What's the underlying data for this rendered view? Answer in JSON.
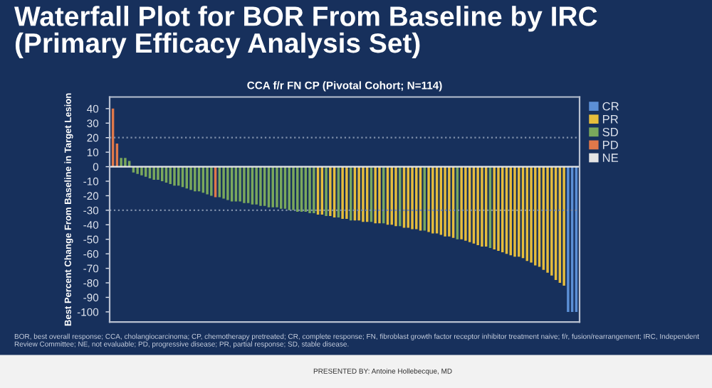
{
  "chart_data": {
    "type": "bar",
    "title": "Waterfall Plot for BOR From Baseline by IRC\n(Primary Efficacy Analysis Set)",
    "subtitle": "CCA f/r FN CP (Pivotal Cohort; N=114)",
    "ylabel": "Best Percent Change From Baseline in Target Lesion",
    "categories": [
      null,
      null,
      null,
      null,
      null,
      null,
      null,
      null,
      null,
      null,
      null,
      null,
      null,
      null,
      null,
      null,
      null,
      null,
      null,
      null,
      null,
      null,
      null,
      null,
      null,
      null,
      null,
      null,
      null,
      null,
      null,
      null,
      null,
      null,
      null,
      null,
      null,
      null,
      null,
      null,
      null,
      null,
      null,
      null,
      null,
      null,
      null,
      null,
      null,
      null,
      null,
      null,
      null,
      null,
      null,
      null,
      null,
      null,
      null,
      null,
      null,
      null,
      null,
      null,
      null,
      null,
      null,
      null,
      null,
      null,
      null,
      null,
      null,
      null,
      null,
      null,
      null,
      null,
      null,
      null,
      null,
      null,
      null,
      null,
      null,
      null,
      null,
      null,
      null,
      null,
      null,
      null,
      null,
      null,
      null,
      null,
      null,
      null,
      null,
      null,
      null,
      null,
      null,
      null,
      null,
      null,
      null,
      null,
      null,
      null,
      null,
      null,
      null,
      null
    ],
    "series": [
      {
        "name": "CR",
        "color": "#5b8fd6",
        "values": [
          null,
          null,
          null,
          null,
          null,
          null,
          null,
          null,
          null,
          null,
          null,
          null,
          null,
          null,
          null,
          null,
          null,
          null,
          null,
          null,
          null,
          null,
          null,
          null,
          null,
          null,
          null,
          null,
          null,
          null,
          null,
          null,
          null,
          null,
          null,
          null,
          null,
          null,
          null,
          null,
          null,
          null,
          null,
          null,
          null,
          null,
          null,
          null,
          null,
          null,
          null,
          null,
          null,
          null,
          null,
          null,
          null,
          null,
          null,
          null,
          null,
          null,
          null,
          null,
          null,
          null,
          null,
          null,
          null,
          null,
          null,
          null,
          null,
          null,
          null,
          null,
          null,
          null,
          null,
          null,
          null,
          null,
          null,
          null,
          null,
          null,
          null,
          null,
          null,
          null,
          null,
          null,
          null,
          null,
          null,
          null,
          null,
          null,
          null,
          null,
          null,
          null,
          null,
          null,
          null,
          null,
          null,
          null,
          null,
          null,
          null,
          -100,
          -100,
          -100
        ]
      },
      {
        "name": "PR",
        "color": "#e6bd3c",
        "values": [
          null,
          null,
          null,
          null,
          null,
          null,
          null,
          null,
          null,
          null,
          null,
          null,
          null,
          null,
          null,
          null,
          null,
          null,
          null,
          null,
          null,
          null,
          null,
          null,
          null,
          null,
          null,
          null,
          null,
          null,
          null,
          null,
          null,
          null,
          null,
          null,
          null,
          null,
          null,
          null,
          null,
          null,
          null,
          null,
          null,
          null,
          null,
          null,
          null,
          null,
          -33,
          -33,
          null,
          -34,
          -35,
          null,
          -36,
          -36,
          null,
          -37,
          -37,
          -38,
          -38,
          null,
          -39,
          -39,
          null,
          -40,
          -40,
          -41,
          null,
          -42,
          -42,
          -43,
          -43,
          -44,
          null,
          -45,
          -46,
          -46,
          -47,
          -48,
          -48,
          -49,
          null,
          -50,
          -51,
          -52,
          -53,
          -54,
          -55,
          -55,
          null,
          -57,
          -58,
          -59,
          -60,
          -61,
          -62,
          -62,
          -63,
          -65,
          -66,
          -68,
          -69,
          -71,
          -73,
          -75,
          -78,
          -80,
          -82,
          null,
          null,
          null
        ]
      },
      {
        "name": "SD",
        "color": "#7aa85c",
        "values": [
          null,
          null,
          6,
          6,
          4,
          -4,
          -5,
          -6,
          -7,
          -8,
          -9,
          -9,
          -10,
          -11,
          -12,
          -13,
          -13,
          -14,
          -15,
          -16,
          -17,
          -17,
          -18,
          -19,
          -20,
          null,
          -21,
          -22,
          -23,
          -24,
          -24,
          -24,
          -25,
          -25,
          -26,
          -26,
          -27,
          -27,
          -28,
          -28,
          -28,
          -29,
          -29,
          -30,
          -30,
          -31,
          -31,
          -31,
          -32,
          -32,
          null,
          null,
          -34,
          null,
          null,
          -35,
          null,
          null,
          -37,
          null,
          null,
          null,
          null,
          -38,
          null,
          null,
          -39,
          null,
          null,
          null,
          -41,
          null,
          null,
          null,
          null,
          null,
          -44,
          null,
          null,
          null,
          null,
          null,
          null,
          null,
          -50,
          null,
          null,
          null,
          null,
          null,
          null,
          null,
          -56,
          null,
          null,
          null,
          null,
          null,
          null,
          null,
          null,
          null,
          null,
          null,
          null,
          null,
          null,
          null,
          null,
          null,
          null,
          null,
          null,
          null
        ]
      },
      {
        "name": "PD",
        "color": "#e0784a",
        "values": [
          40,
          16,
          null,
          null,
          null,
          null,
          null,
          null,
          null,
          null,
          null,
          null,
          null,
          null,
          null,
          null,
          null,
          null,
          null,
          null,
          null,
          null,
          null,
          null,
          null,
          -21,
          null,
          null,
          null,
          null,
          null,
          null,
          null,
          null,
          null,
          null,
          null,
          null,
          null,
          null,
          null,
          null,
          null,
          null,
          null,
          null,
          null,
          null,
          null,
          null,
          null,
          null,
          null,
          null,
          null,
          null,
          null,
          null,
          null,
          null,
          null,
          null,
          null,
          null,
          null,
          null,
          null,
          null,
          null,
          null,
          null,
          null,
          null,
          null,
          null,
          null,
          null,
          null,
          null,
          null,
          null,
          null,
          null,
          null,
          null,
          null,
          null,
          null,
          null,
          null,
          null,
          null,
          null,
          null,
          null,
          null,
          null,
          null,
          null,
          null,
          null,
          null,
          null,
          null,
          null,
          null,
          null,
          null,
          null,
          null,
          null,
          null,
          null,
          null
        ]
      },
      {
        "name": "NE",
        "color": "#e4e4e4",
        "values": [
          null,
          null,
          null,
          null,
          null,
          null,
          null,
          null,
          null,
          null,
          null,
          null,
          null,
          null,
          null,
          null,
          null,
          null,
          null,
          null,
          null,
          null,
          null,
          null,
          null,
          null,
          null,
          null,
          null,
          null,
          null,
          null,
          null,
          null,
          null,
          null,
          null,
          null,
          null,
          null,
          null,
          null,
          null,
          null,
          null,
          null,
          null,
          null,
          null,
          null,
          null,
          null,
          null,
          null,
          null,
          null,
          null,
          null,
          null,
          null,
          null,
          null,
          null,
          null,
          null,
          null,
          null,
          null,
          null,
          null,
          null,
          null,
          null,
          null,
          null,
          null,
          null,
          null,
          null,
          null,
          null,
          null,
          null,
          null,
          null,
          null,
          null,
          null,
          null,
          null,
          null,
          null,
          null,
          null,
          null,
          null,
          null,
          null,
          null,
          null,
          null,
          null,
          null,
          null,
          null,
          null,
          null,
          null,
          null,
          null,
          null,
          null,
          null,
          null
        ]
      }
    ],
    "ylim": [
      -107,
      48
    ],
    "yticks": [
      -100,
      -90,
      -80,
      -70,
      -60,
      -50,
      -40,
      -30,
      -20,
      -10,
      0,
      10,
      20,
      30,
      40
    ],
    "ref_lines": [
      {
        "axis": "y",
        "value": 20,
        "color": "#7f8fab",
        "line_style": "dotted"
      },
      {
        "axis": "y",
        "value": -30,
        "color": "#7f8fab",
        "line_style": "dotted"
      },
      {
        "axis": "y",
        "value": 0,
        "color": "#e8e8e8",
        "line_style": "solid"
      }
    ],
    "legend": "top right",
    "grid": false,
    "annotations": [
      "BOR, best overall response; CCA, cholangiocarcinoma; CP, chemotherapy pretreated; CR, complete response; FN, fibroblast growth factor receptor inhibitor treatment naive; f/r, fusion/rearrangement; IRC, Independent Review Committee; NE, not evaluable; PD, progressive disease; PR, partial response; SD, stable disease.",
      "PRESENTED BY: Antoine Hollebecque, MD"
    ]
  }
}
